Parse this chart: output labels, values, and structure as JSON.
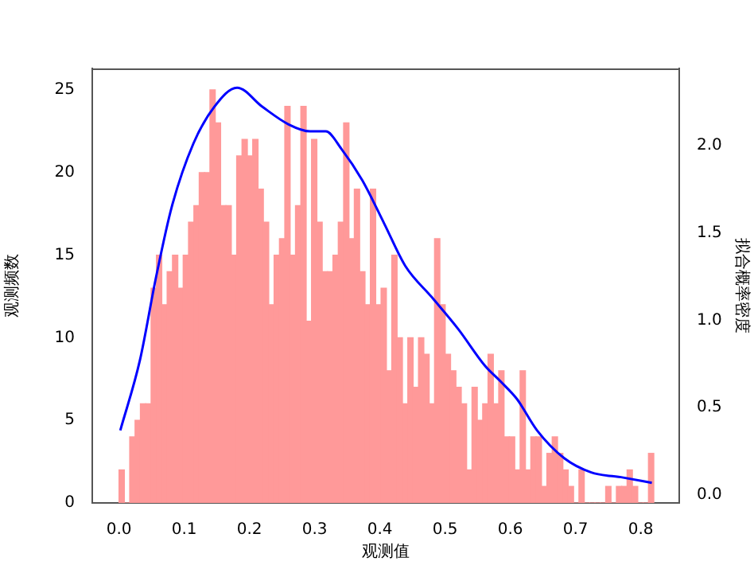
{
  "chart_data": {
    "type": "histogram",
    "xlabel": "观测值",
    "ylabel": "观测频数",
    "y2label": "拟合概率密度",
    "xlim": [
      -0.041,
      0.859
    ],
    "xticks": [
      {
        "value": 0,
        "label": "0.0"
      },
      0.1,
      0.2,
      0.3,
      0.4,
      0.5,
      0.6,
      0.7,
      0.8
    ],
    "ylim": [
      0,
      26.3
    ],
    "yticks": [
      0,
      5,
      10,
      15,
      20,
      25
    ],
    "y2lim": [
      -0.045,
      2.44
    ],
    "y2ticks": [
      {
        "value": 0,
        "label": "0.0"
      },
      0.5,
      {
        "value": 1,
        "label": "1.0"
      },
      1.5,
      {
        "value": 2,
        "label": "2.0"
      }
    ],
    "grid": false,
    "legend": false,
    "series": [
      {
        "type": "histogram",
        "color": "#ff9999",
        "bins": [
          0,
          0.0082,
          0.0164,
          0.0246,
          0.0328,
          0.041,
          0.0492,
          0.0574,
          0.0656,
          0.0738,
          0.082,
          0.0902,
          0.0984,
          0.1066,
          0.1148,
          0.123,
          0.1312,
          0.1394,
          0.1476,
          0.1558,
          0.164,
          0.1722,
          0.1804,
          0.1886,
          0.1968,
          0.205,
          0.2132,
          0.2214,
          0.2296,
          0.2378,
          0.246,
          0.2542,
          0.2624,
          0.2706,
          0.2788,
          0.287,
          0.2952,
          0.3034,
          0.3116,
          0.3198,
          0.328,
          0.3362,
          0.3444,
          0.3526,
          0.3608,
          0.369,
          0.3772,
          0.3854,
          0.3936,
          0.4018,
          0.41,
          0.4182,
          0.4264,
          0.4346,
          0.4428,
          0.451,
          0.4592,
          0.4674,
          0.4756,
          0.4838,
          0.492,
          0.5002,
          0.5084,
          0.5166,
          0.5248,
          0.533,
          0.5412,
          0.5494,
          0.5576,
          0.5658,
          0.574,
          0.5822,
          0.5904,
          0.5986,
          0.6068,
          0.615,
          0.6232,
          0.6314,
          0.6396,
          0.6478,
          0.656,
          0.6642,
          0.6724,
          0.6806,
          0.6888,
          0.697,
          0.7052,
          0.7134,
          0.7216,
          0.7298,
          0.738,
          0.7462,
          0.7544,
          0.7626,
          0.7708,
          0.779,
          0.7872,
          0.7954,
          0.8036,
          0.8118,
          0.82
        ],
        "values": [
          2,
          0,
          4,
          5,
          6,
          6,
          13,
          15,
          12,
          14,
          15,
          13,
          15,
          17,
          18,
          20,
          20,
          25,
          23,
          18,
          18,
          15,
          21,
          22,
          21,
          22,
          19,
          17,
          12,
          15,
          16,
          24,
          15,
          18,
          24,
          11,
          22,
          17,
          14,
          14,
          15,
          17,
          23,
          16,
          19,
          14,
          12,
          19,
          12,
          13,
          8,
          15,
          10,
          6,
          10,
          7,
          10,
          9,
          6,
          16,
          12,
          9,
          8,
          7,
          6,
          2,
          7,
          5,
          6,
          9,
          6,
          8,
          4,
          4,
          2,
          8,
          2,
          4,
          4,
          1,
          3,
          4,
          3,
          2,
          1,
          0,
          2,
          0,
          0,
          0,
          0,
          1,
          0,
          1,
          1,
          2,
          1,
          0,
          0,
          3
        ]
      },
      {
        "type": "line",
        "axis": "y2",
        "color": "#0000ff",
        "x": [
          0.002,
          0.032,
          0.057,
          0.081,
          0.114,
          0.146,
          0.181,
          0.22,
          0.26,
          0.293,
          0.317,
          0.341,
          0.373,
          0.407,
          0.439,
          0.48,
          0.52,
          0.561,
          0.585,
          0.61,
          0.641,
          0.683,
          0.724,
          0.773,
          0.817
        ],
        "values": [
          0.37,
          0.77,
          1.25,
          1.65,
          2.01,
          2.22,
          2.33,
          2.22,
          2.12,
          2.08,
          2.08,
          1.98,
          1.8,
          1.55,
          1.31,
          1.13,
          0.95,
          0.74,
          0.65,
          0.55,
          0.37,
          0.21,
          0.13,
          0.1,
          0.07
        ]
      }
    ]
  }
}
